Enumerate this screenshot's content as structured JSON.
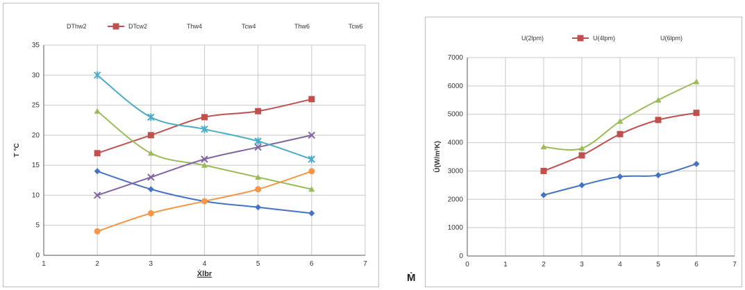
{
  "outside_label": "Ṁ",
  "chart_data": [
    {
      "type": "line",
      "xlabel": "Ẋlbr",
      "ylabel": "T °C",
      "xlim": [
        1,
        7
      ],
      "ylim": [
        0,
        35
      ],
      "xticks": [
        1,
        2,
        3,
        4,
        5,
        6,
        7
      ],
      "yticks": [
        0,
        5,
        10,
        15,
        20,
        25,
        30,
        35
      ],
      "grid": true,
      "legend_position": "top",
      "x": [
        2,
        3,
        4,
        5,
        6
      ],
      "series": [
        {
          "name": "DThw2",
          "values": [
            14,
            11,
            9,
            8,
            7
          ],
          "color": "#4472c4",
          "marker": "diamond"
        },
        {
          "name": "DTcw2",
          "values": [
            17,
            20,
            23,
            24,
            26
          ],
          "color": "#c0504d",
          "marker": "square"
        },
        {
          "name": "Thw4",
          "values": [
            24,
            17,
            15,
            13,
            11
          ],
          "color": "#9bbb59",
          "marker": "triangle"
        },
        {
          "name": "Tcw4",
          "values": [
            10,
            13,
            16,
            18,
            20
          ],
          "color": "#8064a2",
          "marker": "x"
        },
        {
          "name": "Thw6",
          "values": [
            30,
            23,
            21,
            19,
            16
          ],
          "color": "#4bacc6",
          "marker": "star"
        },
        {
          "name": "Tcw6",
          "values": [
            4,
            7,
            9,
            11,
            14
          ],
          "color": "#f79646",
          "marker": "circle"
        }
      ]
    },
    {
      "type": "line",
      "xlabel": "",
      "ylabel": "Ŭ(W/m²K)",
      "xlim": [
        0,
        7
      ],
      "ylim": [
        0,
        7000
      ],
      "xticks": [
        0,
        1,
        2,
        3,
        4,
        5,
        6,
        7
      ],
      "yticks": [
        0,
        1000,
        2000,
        3000,
        4000,
        5000,
        6000,
        7000
      ],
      "grid": true,
      "legend_position": "top",
      "x": [
        2,
        3,
        4,
        5,
        6
      ],
      "series": [
        {
          "name": "U(2lpm)",
          "values": [
            2150,
            2500,
            2800,
            2850,
            3250
          ],
          "color": "#4472c4",
          "marker": "diamond"
        },
        {
          "name": "U(4lpm)",
          "values": [
            3000,
            3550,
            4300,
            4800,
            5050
          ],
          "color": "#c0504d",
          "marker": "square"
        },
        {
          "name": "U(6lpm)",
          "values": [
            3850,
            3800,
            4750,
            5500,
            6150
          ],
          "color": "#9bbb59",
          "marker": "triangle"
        }
      ]
    }
  ]
}
